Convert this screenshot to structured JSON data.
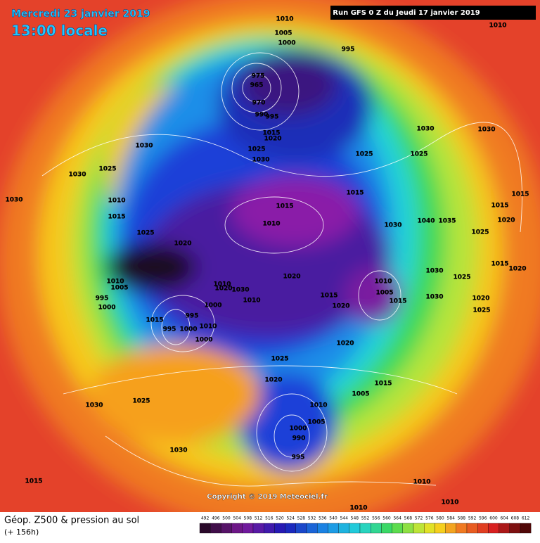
{
  "header": {
    "date": "Mercredi 23 janvier 2019",
    "time": "13:00 locale",
    "run": "Run GFS 0 Z du Jeudi 17 janvier 2019"
  },
  "isobar_labels": [
    1010,
    1005,
    1000,
    995,
    1010,
    975,
    965,
    970,
    990,
    995,
    1015,
    1020,
    1025,
    1030,
    1030,
    1025,
    1030,
    1030,
    1010,
    1015,
    1025,
    1020,
    1030,
    1030,
    1025,
    1025,
    1015,
    1015,
    1010,
    1030,
    1040,
    1035,
    1015,
    1015,
    1020,
    1025,
    1015,
    1020,
    1030,
    1025,
    1010,
    1005,
    995,
    1000,
    1010,
    1020,
    1030,
    1020,
    1010,
    1005,
    1015,
    1030,
    1020,
    1025,
    1015,
    1020,
    1000,
    995,
    1010,
    1015,
    995,
    1000,
    1010,
    1000,
    1020,
    1025,
    1020,
    1015,
    1005,
    1010,
    1005,
    1000,
    990,
    995,
    1030,
    1025,
    1030,
    1015,
    1010,
    1010,
    1010
  ],
  "copyright": "Copyright © 2019 Meteociel.fr",
  "legend": {
    "title": "Géop. Z500 & pression au sol",
    "lead": "(+ 156h)",
    "scale": [
      492,
      496,
      500,
      504,
      508,
      512,
      516,
      520,
      524,
      528,
      532,
      536,
      540,
      544,
      548,
      552,
      556,
      560,
      564,
      568,
      572,
      576,
      580,
      584,
      588,
      592,
      596,
      600,
      604,
      608,
      612
    ]
  }
}
